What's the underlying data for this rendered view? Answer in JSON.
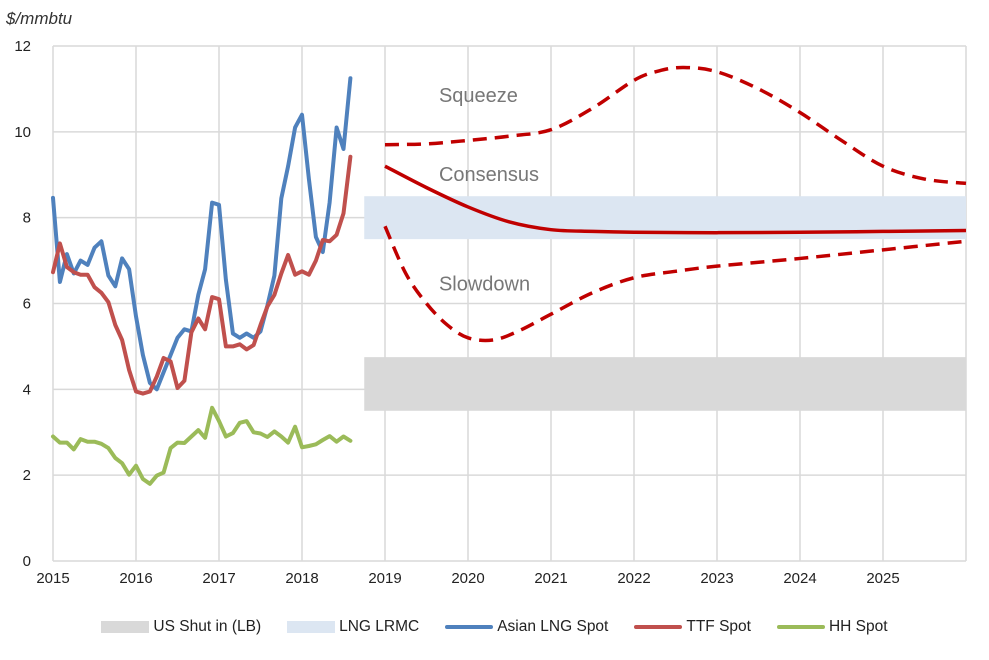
{
  "chart_data": {
    "type": "line",
    "ylabel": "$/mmbtu",
    "ylim": [
      0,
      12
    ],
    "yticks": [
      "0",
      "2",
      "4",
      "6",
      "8",
      "10",
      "12"
    ],
    "xlim": [
      2015,
      2026
    ],
    "xticks": [
      "2015",
      "2016",
      "2017",
      "2018",
      "2019",
      "2020",
      "2021",
      "2022",
      "2023",
      "2024",
      "2025"
    ],
    "grid": true,
    "legend_position": "bottom",
    "bands": [
      {
        "name": "US Shut in (LB)",
        "color": "#d9d9d9",
        "x": [
          2018.75,
          2026
        ],
        "y": [
          3.5,
          4.75
        ]
      },
      {
        "name": "LNG LRMC",
        "color": "#dce6f2",
        "x": [
          2018.75,
          2026
        ],
        "y": [
          7.5,
          8.5
        ]
      }
    ],
    "historical_x": [
      2015.0,
      2015.083,
      2015.167,
      2015.25,
      2015.333,
      2015.417,
      2015.5,
      2015.583,
      2015.667,
      2015.75,
      2015.833,
      2015.917,
      2016.0,
      2016.083,
      2016.167,
      2016.25,
      2016.333,
      2016.417,
      2016.5,
      2016.583,
      2016.667,
      2016.75,
      2016.833,
      2016.917,
      2017.0,
      2017.083,
      2017.167,
      2017.25,
      2017.333,
      2017.417,
      2017.5,
      2017.583,
      2017.667,
      2017.75,
      2017.833,
      2017.917,
      2018.0,
      2018.083,
      2018.167,
      2018.25,
      2018.333,
      2018.417,
      2018.5,
      2018.583
    ],
    "series": [
      {
        "name": "Asian LNG Spot",
        "color": "#4f81bd",
        "style": "solid",
        "values": [
          8.46,
          6.5,
          7.15,
          6.7,
          7.0,
          6.9,
          7.3,
          7.45,
          6.65,
          6.4,
          7.05,
          6.8,
          5.7,
          4.8,
          4.15,
          4.0,
          4.4,
          4.8,
          5.2,
          5.4,
          5.35,
          6.2,
          6.8,
          8.35,
          8.3,
          6.55,
          5.3,
          5.2,
          5.3,
          5.2,
          5.35,
          5.95,
          6.65,
          8.45,
          9.2,
          10.1,
          10.4,
          8.9,
          7.55,
          7.2,
          8.35,
          10.1,
          9.6,
          11.25
        ]
      },
      {
        "name": "TTF Spot",
        "color": "#c0504d",
        "style": "solid",
        "values": [
          6.73,
          7.4,
          6.85,
          6.73,
          6.67,
          6.67,
          6.38,
          6.25,
          6.03,
          5.5,
          5.15,
          4.45,
          3.95,
          3.9,
          3.95,
          4.3,
          4.73,
          4.65,
          4.03,
          4.2,
          5.33,
          5.65,
          5.4,
          6.15,
          6.1,
          5.0,
          5.0,
          5.05,
          4.93,
          5.03,
          5.5,
          5.93,
          6.2,
          6.7,
          7.13,
          6.67,
          6.75,
          6.67,
          7.0,
          7.48,
          7.45,
          7.6,
          8.1,
          9.42
        ]
      },
      {
        "name": "HH Spot",
        "color": "#9bbb59",
        "style": "solid",
        "values": [
          2.9,
          2.76,
          2.76,
          2.6,
          2.84,
          2.78,
          2.78,
          2.73,
          2.63,
          2.4,
          2.28,
          2.01,
          2.22,
          1.91,
          1.8,
          1.99,
          2.06,
          2.63,
          2.76,
          2.75,
          2.9,
          3.05,
          2.87,
          3.57,
          3.26,
          2.9,
          2.98,
          3.22,
          3.26,
          3.0,
          2.97,
          2.89,
          3.02,
          2.9,
          2.76,
          3.13,
          2.65,
          2.68,
          2.72,
          2.82,
          2.91,
          2.78,
          2.9,
          2.8
        ]
      }
    ],
    "scenarios": [
      {
        "name": "Squeeze",
        "color": "#c00000",
        "style": "dashed",
        "x": [
          2019,
          2019.5,
          2020,
          2020.5,
          2021,
          2021.5,
          2022,
          2022.3,
          2022.6,
          2023,
          2023.5,
          2024,
          2024.5,
          2025,
          2025.5,
          2026
        ],
        "values": [
          9.7,
          9.72,
          9.8,
          9.9,
          10.05,
          10.55,
          11.2,
          11.42,
          11.5,
          11.4,
          11.0,
          10.45,
          9.8,
          9.2,
          8.9,
          8.8
        ]
      },
      {
        "name": "Consensus",
        "color": "#c00000",
        "style": "solid",
        "x": [
          2019,
          2019.5,
          2020,
          2020.5,
          2021,
          2021.5,
          2022,
          2023,
          2024,
          2025,
          2026
        ],
        "values": [
          9.2,
          8.7,
          8.25,
          7.9,
          7.72,
          7.68,
          7.66,
          7.65,
          7.66,
          7.68,
          7.7
        ]
      },
      {
        "name": "Slowdown",
        "color": "#c00000",
        "style": "dashed",
        "x": [
          2019,
          2019.25,
          2019.5,
          2019.75,
          2020,
          2020.3,
          2020.6,
          2021,
          2021.5,
          2022,
          2022.5,
          2023,
          2024,
          2025,
          2026
        ],
        "values": [
          7.8,
          6.7,
          6.0,
          5.5,
          5.2,
          5.15,
          5.35,
          5.75,
          6.25,
          6.6,
          6.75,
          6.87,
          7.05,
          7.25,
          7.45
        ]
      }
    ],
    "annotations": [
      {
        "text": "Squeeze",
        "x": 2019.65,
        "y": 10.7
      },
      {
        "text": "Consensus",
        "x": 2019.65,
        "y": 8.85
      },
      {
        "text": "Slowdown",
        "x": 2019.65,
        "y": 6.3
      }
    ]
  }
}
